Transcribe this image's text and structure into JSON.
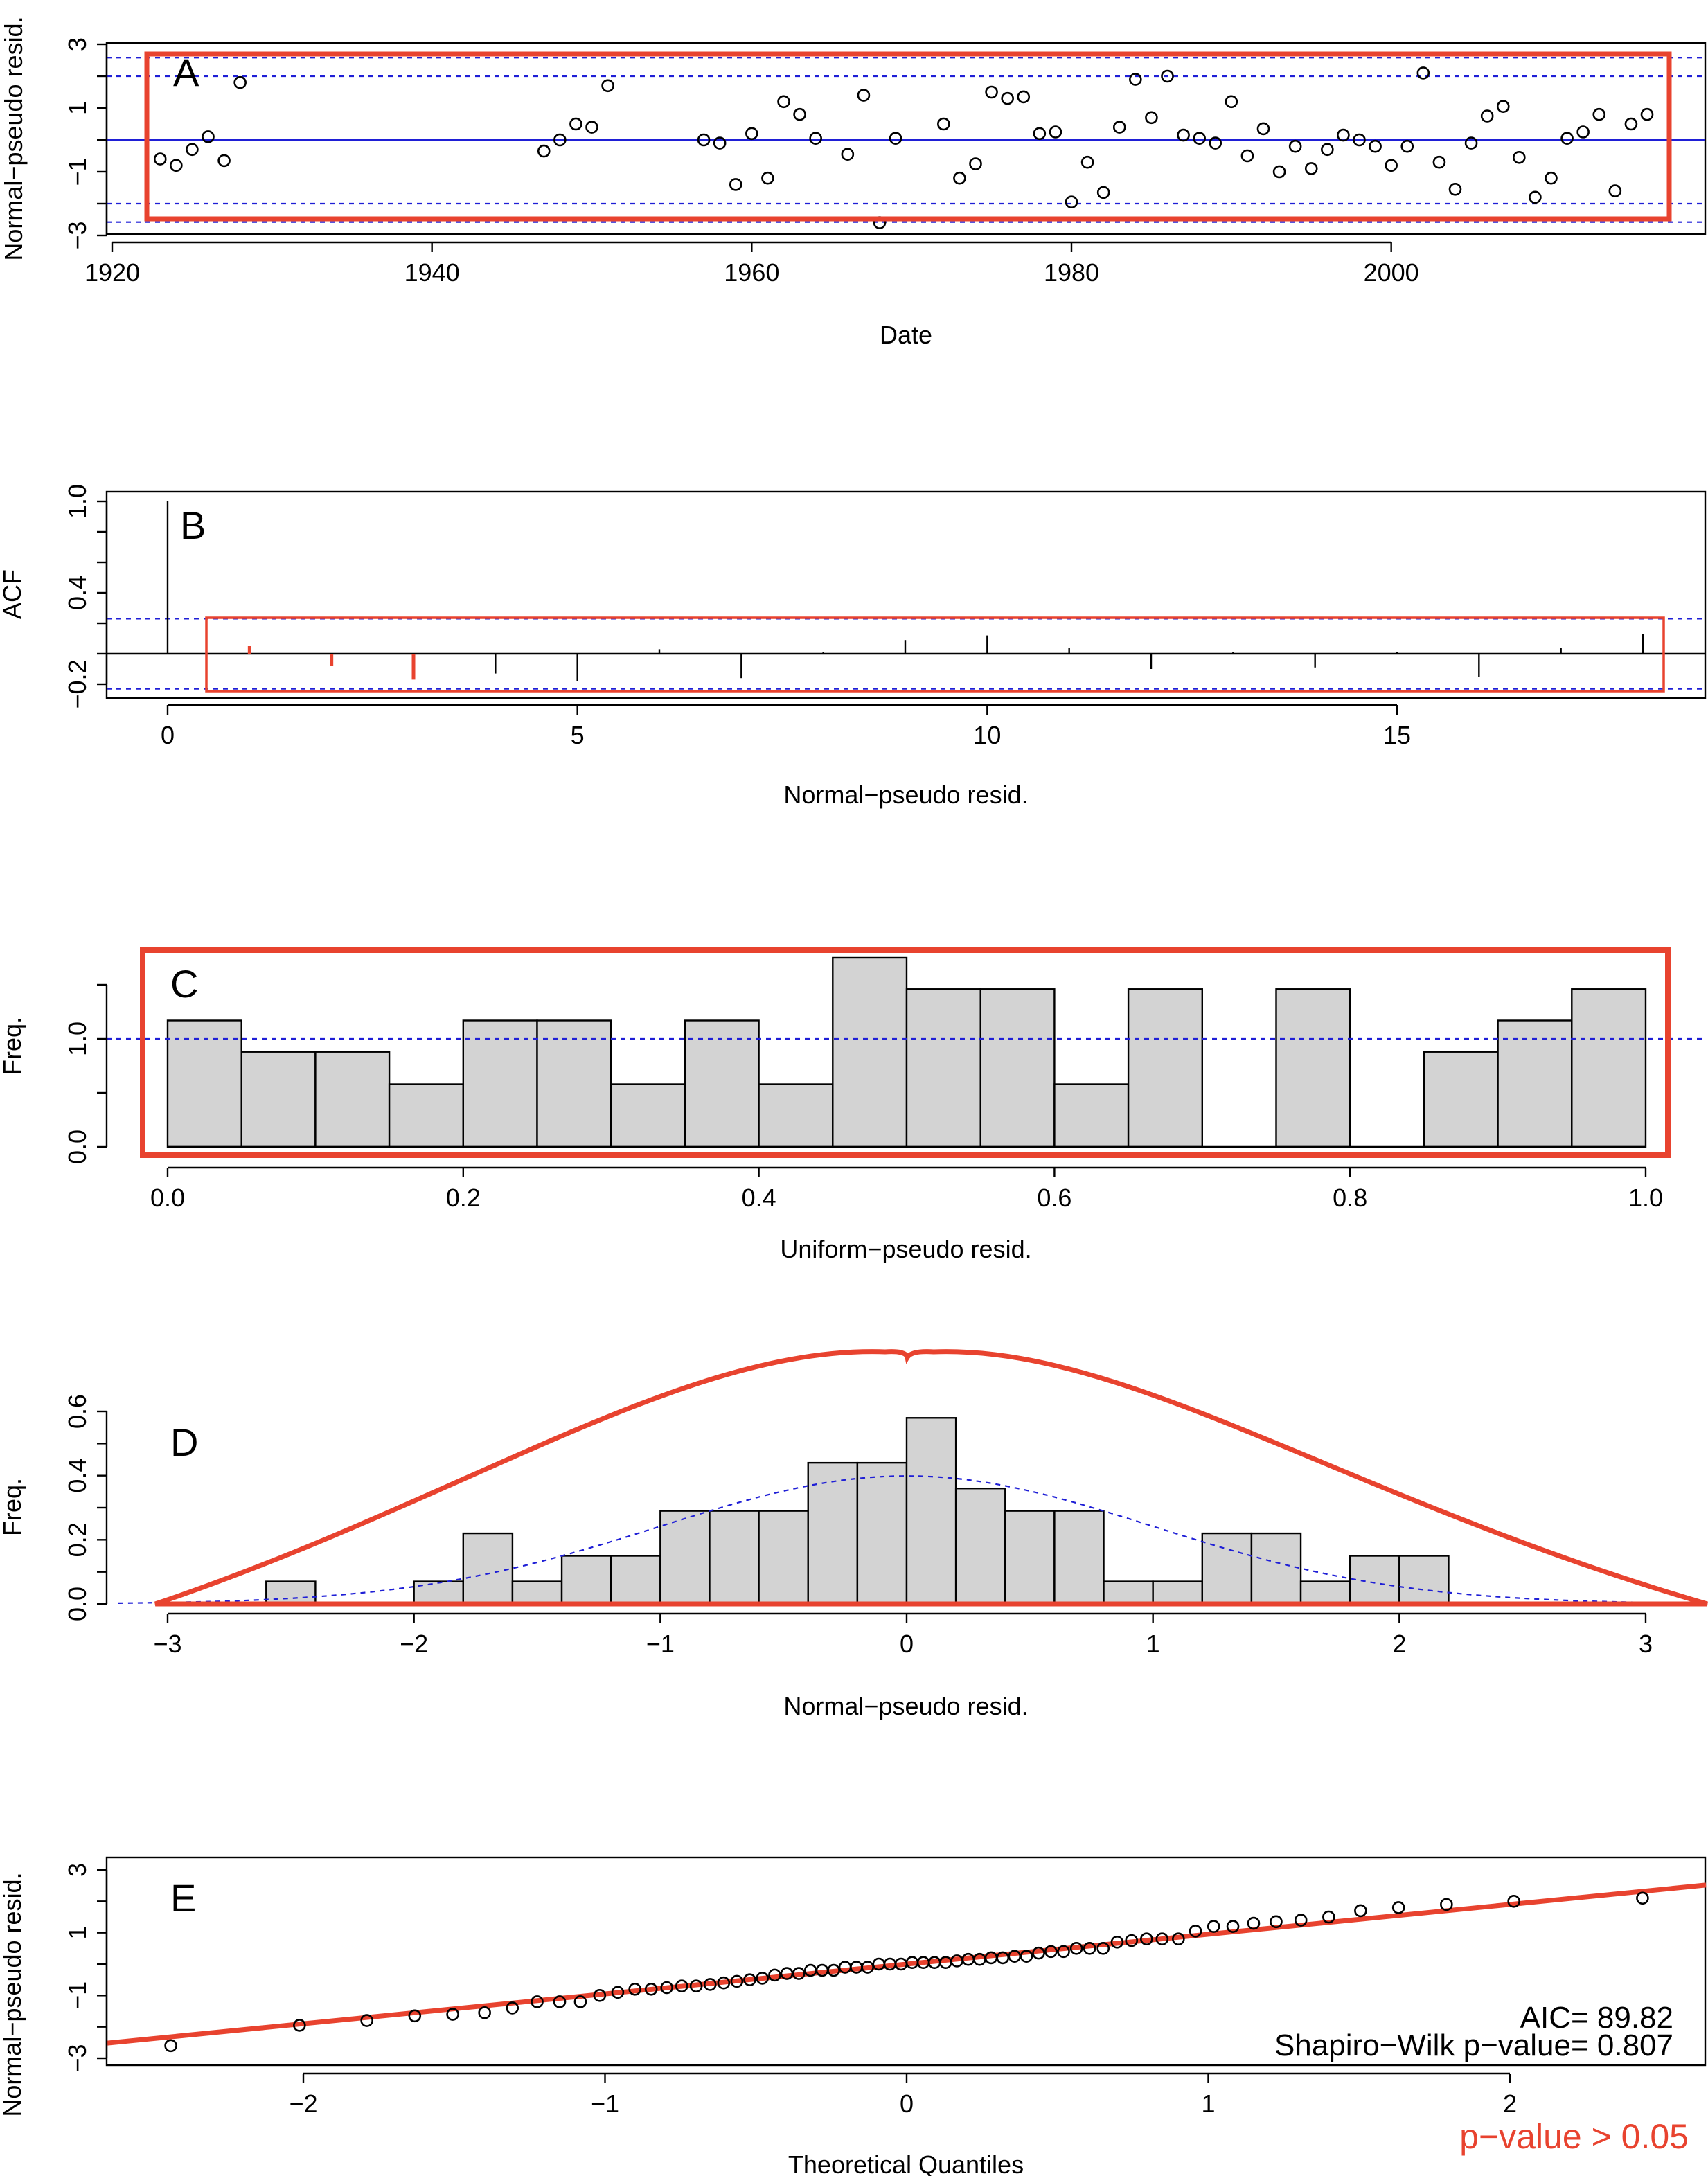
{
  "colors": {
    "accent_red": "#e8432f",
    "ref_blue": "#1f1fd6",
    "bar_fill": "#d3d3d3"
  },
  "panels": {
    "A": {
      "letter": "A",
      "xlabel": "Date",
      "ylabel": "Normal−pseudo resid.",
      "xticks": [
        "1920",
        "1940",
        "1960",
        "1980",
        "2000"
      ],
      "yticks": [
        "−3",
        "−1",
        "1",
        "3"
      ]
    },
    "B": {
      "letter": "B",
      "xlabel": "Normal−pseudo resid.",
      "ylabel": "ACF",
      "xticks": [
        "0",
        "5",
        "10",
        "15"
      ],
      "yticks": [
        "−0.2",
        "0.4",
        "1.0"
      ]
    },
    "C": {
      "letter": "C",
      "xlabel": "Uniform−pseudo resid.",
      "ylabel": "Freq.",
      "xticks": [
        "0.0",
        "0.2",
        "0.4",
        "0.6",
        "0.8",
        "1.0"
      ],
      "yticks": [
        "0.0",
        "1.0"
      ]
    },
    "D": {
      "letter": "D",
      "xlabel": "Normal−pseudo resid.",
      "ylabel": "Freq.",
      "xticks": [
        "−3",
        "−2",
        "−1",
        "0",
        "1",
        "2",
        "3"
      ],
      "yticks": [
        "0.0",
        "0.2",
        "0.4",
        "0.6"
      ]
    },
    "E": {
      "letter": "E",
      "xlabel": "Theoretical Quantiles",
      "ylabel": "Normal−pseudo resid.",
      "xticks": [
        "−2",
        "−1",
        "0",
        "1",
        "2"
      ],
      "yticks": [
        "−3",
        "−1",
        "1",
        "3"
      ],
      "aic": "AIC= 89.82",
      "shapiro": "Shapiro−Wilk p−value= 0.807",
      "note": "p−value > 0.05"
    }
  },
  "chart_data": [
    {
      "panel": "A",
      "type": "scatter",
      "xlabel": "Date",
      "ylabel": "Normal−pseudo resid.",
      "xlim": [
        1918,
        2018
      ],
      "ylim": [
        -3.1,
        3.3
      ],
      "reference_lines": {
        "solid": [
          0
        ],
        "dashed": [
          -2,
          2,
          -2.58,
          2.58
        ]
      },
      "points": [
        [
          1923,
          -0.6
        ],
        [
          1924,
          -0.8
        ],
        [
          1925,
          -0.3
        ],
        [
          1926,
          0.1
        ],
        [
          1927,
          -0.65
        ],
        [
          1928,
          1.8
        ],
        [
          1947,
          -0.35
        ],
        [
          1948,
          0.0
        ],
        [
          1949,
          0.5
        ],
        [
          1950,
          0.4
        ],
        [
          1951,
          1.7
        ],
        [
          1957,
          0.0
        ],
        [
          1958,
          -0.1
        ],
        [
          1959,
          -1.4
        ],
        [
          1960,
          0.2
        ],
        [
          1961,
          -1.2
        ],
        [
          1962,
          1.2
        ],
        [
          1963,
          0.8
        ],
        [
          1964,
          0.05
        ],
        [
          1966,
          -0.45
        ],
        [
          1967,
          1.4
        ],
        [
          1968,
          -2.6
        ],
        [
          1969,
          0.05
        ],
        [
          1972,
          0.5
        ],
        [
          1973,
          -1.2
        ],
        [
          1974,
          -0.75
        ],
        [
          1975,
          1.5
        ],
        [
          1976,
          1.3
        ],
        [
          1977,
          1.35
        ],
        [
          1978,
          0.2
        ],
        [
          1979,
          0.25
        ],
        [
          1980,
          -1.95
        ],
        [
          1981,
          -0.7
        ],
        [
          1982,
          -1.65
        ],
        [
          1983,
          0.4
        ],
        [
          1984,
          1.9
        ],
        [
          1985,
          0.7
        ],
        [
          1986,
          2.0
        ],
        [
          1987,
          0.15
        ],
        [
          1988,
          0.05
        ],
        [
          1989,
          -0.1
        ],
        [
          1990,
          1.2
        ],
        [
          1991,
          -0.5
        ],
        [
          1992,
          0.35
        ],
        [
          1993,
          -1.0
        ],
        [
          1994,
          -0.2
        ],
        [
          1995,
          -0.9
        ],
        [
          1996,
          -0.3
        ],
        [
          1997,
          0.15
        ],
        [
          1998,
          0.0
        ],
        [
          1999,
          -0.2
        ],
        [
          2000,
          -0.8
        ],
        [
          2001,
          -0.2
        ],
        [
          2002,
          2.1
        ],
        [
          2003,
          -0.7
        ],
        [
          2004,
          -1.55
        ],
        [
          2005,
          -0.1
        ],
        [
          2006,
          0.75
        ],
        [
          2007,
          1.05
        ],
        [
          2008,
          -0.55
        ],
        [
          2009,
          -1.8
        ],
        [
          2010,
          -1.2
        ],
        [
          2011,
          0.05
        ],
        [
          2012,
          0.25
        ],
        [
          2013,
          0.8
        ],
        [
          2014,
          -1.6
        ],
        [
          2015,
          0.5
        ],
        [
          2016,
          0.8
        ]
      ]
    },
    {
      "panel": "B",
      "type": "bar",
      "xlabel": "Normal−pseudo resid.",
      "ylabel": "ACF",
      "xlim": [
        -0.7,
        18.7
      ],
      "ylim": [
        -0.3,
        1.05
      ],
      "lags": [
        0,
        1,
        2,
        3,
        4,
        5,
        6,
        7,
        8,
        9,
        10,
        11,
        12,
        13,
        14,
        15,
        16,
        17,
        18
      ],
      "values": [
        1.0,
        0.05,
        -0.08,
        -0.17,
        -0.13,
        -0.18,
        0.03,
        -0.16,
        0.01,
        0.09,
        0.12,
        0.04,
        -0.1,
        0.01,
        -0.09,
        0.01,
        -0.15,
        0.04,
        0.13
      ],
      "confidence_band": [
        -0.23,
        0.23
      ]
    },
    {
      "panel": "C",
      "type": "bar",
      "xlabel": "Uniform−pseudo resid.",
      "ylabel": "Freq.",
      "xlim": [
        -0.05,
        1.05
      ],
      "ylim": [
        0,
        1.85
      ],
      "bin_edges": [
        0.0,
        0.05,
        0.1,
        0.15,
        0.2,
        0.25,
        0.3,
        0.35,
        0.4,
        0.45,
        0.5,
        0.55,
        0.6,
        0.65,
        0.7,
        0.75,
        0.8,
        0.85,
        0.9,
        0.95,
        1.0
      ],
      "values": [
        1.17,
        0.88,
        0.88,
        0.58,
        1.17,
        1.17,
        0.58,
        1.17,
        0.58,
        1.75,
        1.46,
        1.46,
        0.58,
        1.46,
        0.0,
        1.46,
        0.0,
        0.88,
        1.17,
        1.46
      ],
      "reference_line": 1.0
    },
    {
      "panel": "D",
      "type": "bar",
      "xlabel": "Normal−pseudo resid.",
      "ylabel": "Freq.",
      "xlim": [
        -3.05,
        3.25
      ],
      "ylim": [
        0,
        0.65
      ],
      "bin_edges": [
        -2.6,
        -2.4,
        -2.2,
        -2.0,
        -1.8,
        -1.6,
        -1.4,
        -1.2,
        -1.0,
        -0.8,
        -0.6,
        -0.4,
        -0.2,
        0.0,
        0.2,
        0.4,
        0.6,
        0.8,
        1.0,
        1.2,
        1.4,
        1.6,
        1.8,
        2.0,
        2.2
      ],
      "values": [
        0.07,
        0.0,
        0.0,
        0.07,
        0.22,
        0.07,
        0.15,
        0.15,
        0.29,
        0.29,
        0.29,
        0.44,
        0.44,
        0.58,
        0.36,
        0.29,
        0.29,
        0.07,
        0.07,
        0.22,
        0.22,
        0.07,
        0.15,
        0.15
      ],
      "curve": "normal density (mean 0, sd 1)"
    },
    {
      "panel": "E",
      "type": "scatter",
      "xlabel": "Theoretical Quantiles",
      "ylabel": "Normal−pseudo resid.",
      "xlim": [
        -2.65,
        2.65
      ],
      "ylim": [
        -3.2,
        3.4
      ],
      "qq_line": {
        "intercept": 0.0,
        "slope": 0.95
      }
    }
  ]
}
